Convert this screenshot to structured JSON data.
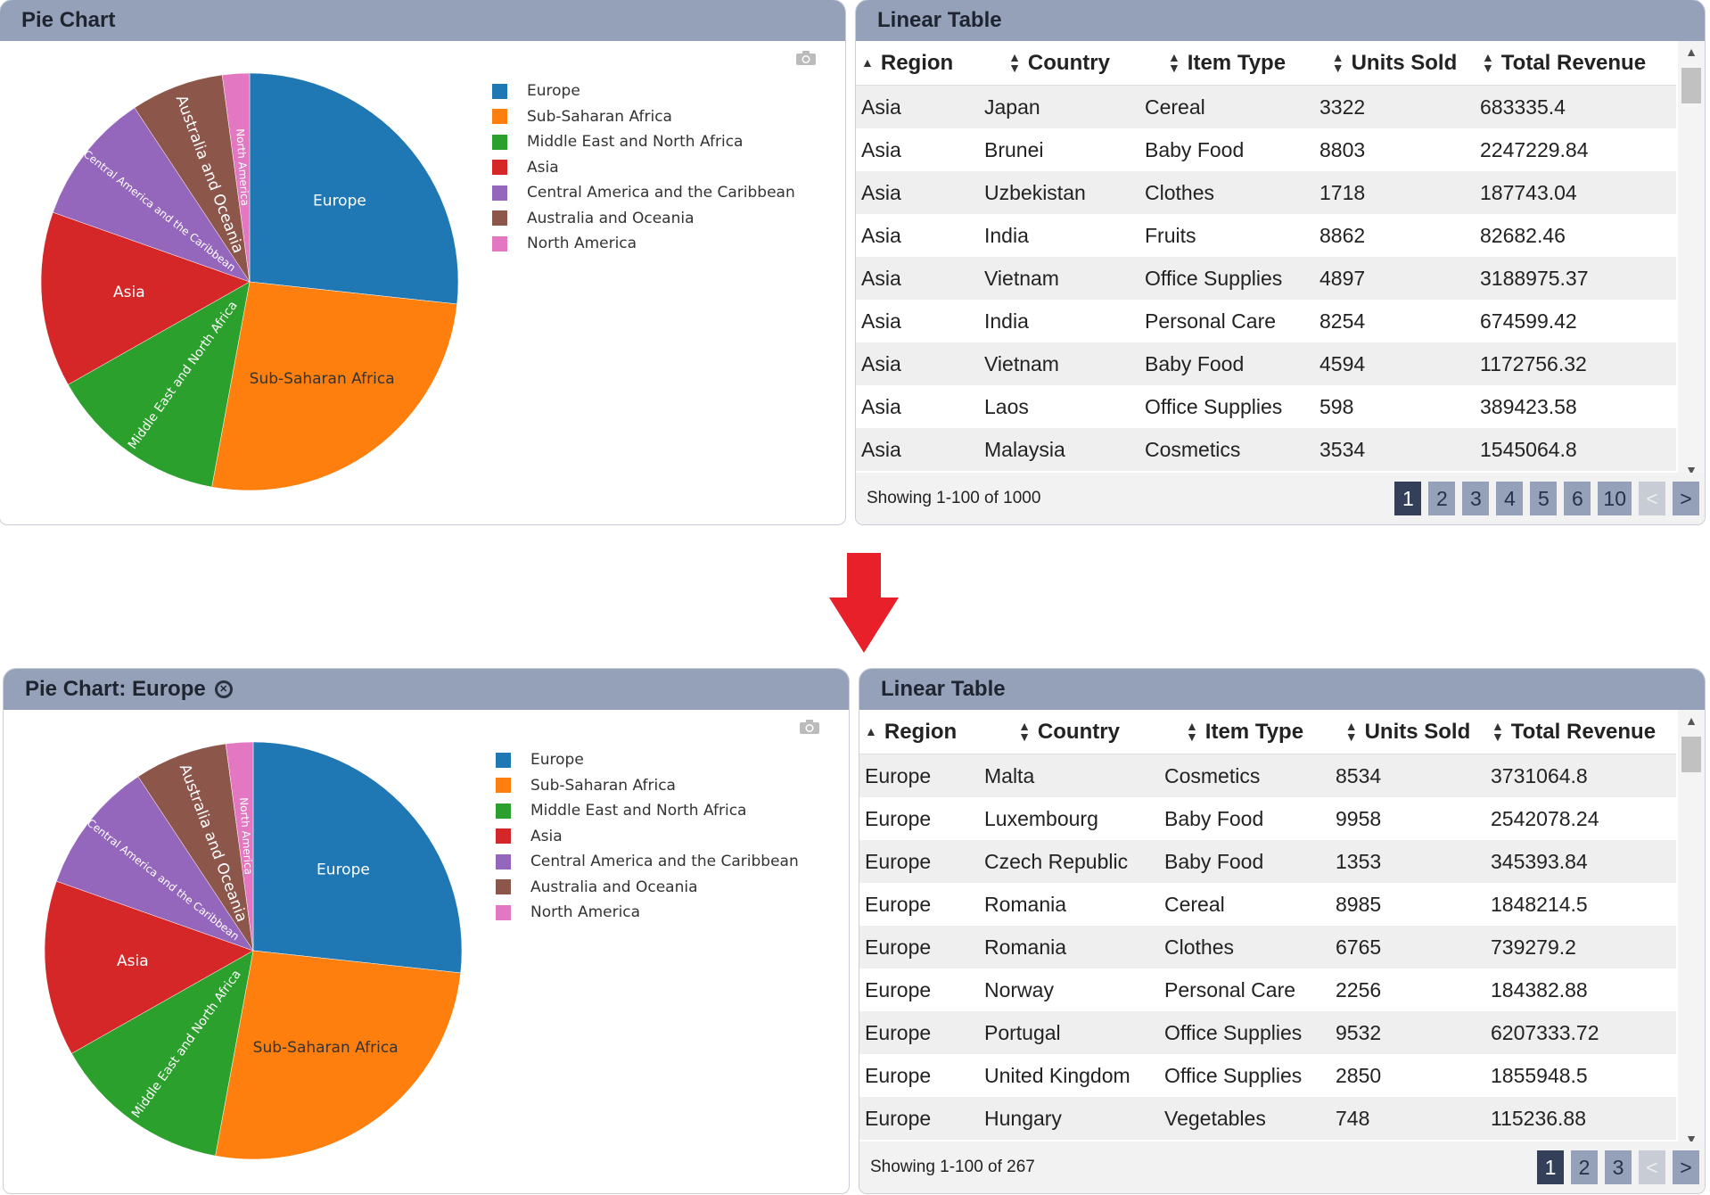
{
  "top": {
    "pie": {
      "title": "Pie Chart",
      "chart_data": {
        "type": "pie",
        "categories": [
          "Europe",
          "Sub-Saharan Africa",
          "Middle East and North Africa",
          "Asia",
          "Central America and the Caribbean",
          "Australia and Oceania",
          "North America"
        ],
        "values": [
          26.7,
          26.2,
          13.9,
          13.6,
          10.3,
          7.2,
          2.1
        ],
        "colors": [
          "#1f77b4",
          "#ff7f0e",
          "#2ca02c",
          "#d62728",
          "#9467bd",
          "#8c564b",
          "#e377c2"
        ],
        "legend": "right"
      }
    },
    "table": {
      "title": "Linear Table",
      "columns": [
        "Region",
        "Country",
        "Item Type",
        "Units Sold",
        "Total Revenue"
      ],
      "rows": [
        [
          "Asia",
          "Japan",
          "Cereal",
          "3322",
          "683335.4"
        ],
        [
          "Asia",
          "Brunei",
          "Baby Food",
          "8803",
          "2247229.84"
        ],
        [
          "Asia",
          "Uzbekistan",
          "Clothes",
          "1718",
          "187743.04"
        ],
        [
          "Asia",
          "India",
          "Fruits",
          "8862",
          "82682.46"
        ],
        [
          "Asia",
          "Vietnam",
          "Office Supplies",
          "4897",
          "3188975.37"
        ],
        [
          "Asia",
          "India",
          "Personal Care",
          "8254",
          "674599.42"
        ],
        [
          "Asia",
          "Vietnam",
          "Baby Food",
          "4594",
          "1172756.32"
        ],
        [
          "Asia",
          "Laos",
          "Office Supplies",
          "598",
          "389423.58"
        ],
        [
          "Asia",
          "Malaysia",
          "Cosmetics",
          "3534",
          "1545064.8"
        ]
      ],
      "showing": "Showing 1-100 of 1000",
      "pages": [
        "1",
        "2",
        "3",
        "4",
        "5",
        "6",
        "10"
      ]
    }
  },
  "bottom": {
    "pie": {
      "title": "Pie Chart: Europe",
      "chart_data": {
        "type": "pie",
        "categories": [
          "Europe",
          "Sub-Saharan Africa",
          "Middle East and North Africa",
          "Asia",
          "Central America and the Caribbean",
          "Australia and Oceania",
          "North America"
        ],
        "values": [
          26.7,
          26.2,
          13.9,
          13.6,
          10.3,
          7.2,
          2.1
        ],
        "colors": [
          "#1f77b4",
          "#ff7f0e",
          "#2ca02c",
          "#d62728",
          "#9467bd",
          "#8c564b",
          "#e377c2"
        ],
        "legend": "right"
      }
    },
    "table": {
      "title": "Linear Table",
      "columns": [
        "Region",
        "Country",
        "Item Type",
        "Units Sold",
        "Total Revenue"
      ],
      "rows": [
        [
          "Europe",
          "Malta",
          "Cosmetics",
          "8534",
          "3731064.8"
        ],
        [
          "Europe",
          "Luxembourg",
          "Baby Food",
          "9958",
          "2542078.24"
        ],
        [
          "Europe",
          "Czech Republic",
          "Baby Food",
          "1353",
          "345393.84"
        ],
        [
          "Europe",
          "Romania",
          "Cereal",
          "8985",
          "1848214.5"
        ],
        [
          "Europe",
          "Romania",
          "Clothes",
          "6765",
          "739279.2"
        ],
        [
          "Europe",
          "Norway",
          "Personal Care",
          "2256",
          "184382.88"
        ],
        [
          "Europe",
          "Portugal",
          "Office Supplies",
          "9532",
          "6207333.72"
        ],
        [
          "Europe",
          "United Kingdom",
          "Office Supplies",
          "2850",
          "1855948.5"
        ],
        [
          "Europe",
          "Hungary",
          "Vegetables",
          "748",
          "115236.88"
        ]
      ],
      "showing": "Showing 1-100 of 267",
      "pages": [
        "1",
        "2",
        "3"
      ]
    }
  },
  "pager": {
    "prev": "<",
    "next": ">"
  },
  "arrow_color": "#e8202a"
}
